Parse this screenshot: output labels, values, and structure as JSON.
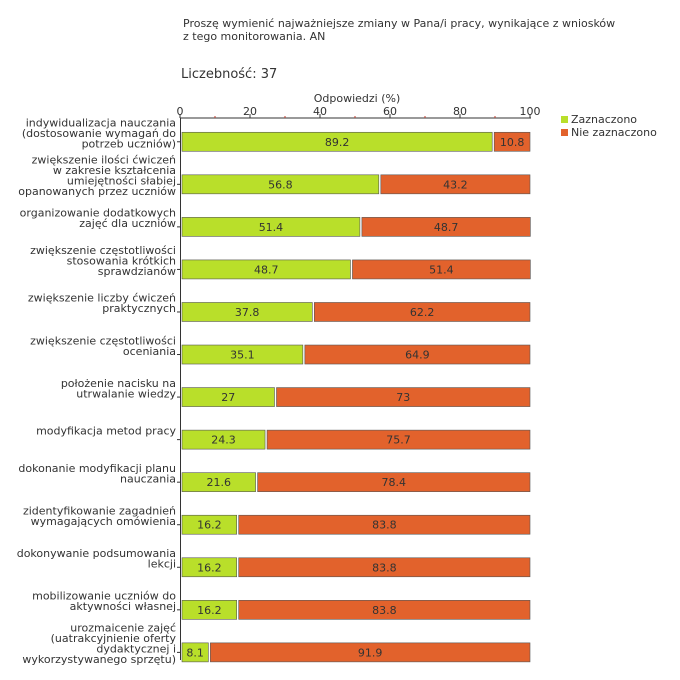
{
  "chart_data": {
    "type": "bar",
    "orientation": "horizontal",
    "stacked": true,
    "title": "Proszę wymienić najważniejsze zmiany w Pana/i pracy, wynikające z wniosków z tego monitorowania. AN",
    "count_label": "Liczebność: 37",
    "xlabel": "Odpowiedzi (%)",
    "xlim": [
      0,
      100
    ],
    "xticks": [
      0,
      20,
      40,
      60,
      80,
      100
    ],
    "legend_position": "top-right",
    "categories": [
      [
        "indywidualizacja nauczania",
        "(dostosowanie wymagań do",
        "potrzeb uczniów)"
      ],
      [
        "zwiększenie ilości ćwiczeń",
        "w zakresie kształcenia",
        "umiejętności słabiej",
        "opanowanych przez uczniów"
      ],
      [
        "organizowanie dodatkowych",
        "zajęć dla uczniów"
      ],
      [
        "zwiększenie częstotliwości",
        "stosowania krótkich",
        "sprawdzianów"
      ],
      [
        "zwiększenie liczby ćwiczeń",
        "praktycznych"
      ],
      [
        "zwiększenie częstotliwości",
        "oceniania"
      ],
      [
        "położenie nacisku na",
        "utrwalanie wiedzy"
      ],
      [
        "modyfikacja metod pracy"
      ],
      [
        "dokonanie modyfikacji planu",
        "nauczania"
      ],
      [
        "zidentyfikowanie zagadnień",
        "wymagających omówienia"
      ],
      [
        "dokonywanie podsumowania",
        "lekcji"
      ],
      [
        "mobilizowanie uczniów do",
        "aktywności własnej"
      ],
      [
        "urozmaicenie zajęć",
        "(uatrakcyjnienie oferty",
        "dydaktycznej i",
        "wykorzystywanego sprzętu)"
      ]
    ],
    "series": [
      {
        "name": "Zaznaczono",
        "color": "#b9df2a",
        "values": [
          89.2,
          56.8,
          51.4,
          48.7,
          37.8,
          35.1,
          27,
          24.3,
          21.6,
          16.2,
          16.2,
          16.2,
          8.1
        ]
      },
      {
        "name": "Nie zaznaczono",
        "color": "#e2622c",
        "values": [
          10.8,
          43.2,
          48.7,
          51.4,
          62.2,
          64.9,
          73,
          75.7,
          78.4,
          83.8,
          83.8,
          83.8,
          91.9
        ]
      }
    ]
  }
}
